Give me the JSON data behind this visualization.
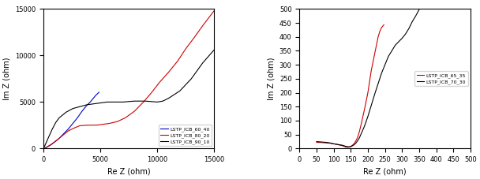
{
  "plot1": {
    "xlabel": "Re Z (ohm)",
    "ylabel": "Im Z (ohm)",
    "xlim": [
      0,
      15000
    ],
    "ylim": [
      0,
      15000
    ],
    "xticks": [
      0,
      5000,
      10000,
      15000
    ],
    "yticks": [
      0,
      5000,
      10000,
      15000
    ],
    "legend_loc": "lower right",
    "series": [
      {
        "label": "LSTP_ICB_60_40",
        "color": "#0000cc",
        "x": [
          0,
          200,
          400,
          700,
          1000,
          1400,
          1800,
          2200,
          2600,
          3000,
          3400,
          3800,
          4200,
          4600,
          4900
        ],
        "y": [
          0,
          80,
          200,
          420,
          700,
          1100,
          1600,
          2100,
          2700,
          3300,
          4000,
          4600,
          5100,
          5700,
          6050
        ]
      },
      {
        "label": "LSTP_ICB_80_20",
        "color": "#cc0000",
        "x": [
          0,
          300,
          700,
          1200,
          1700,
          2200,
          2700,
          3200,
          3700,
          4200,
          4700,
          5200,
          5800,
          6500,
          7200,
          8000,
          8800,
          9500,
          10200,
          11000,
          11800,
          12500,
          13300,
          14000,
          15000
        ],
        "y": [
          0,
          150,
          450,
          900,
          1400,
          1900,
          2200,
          2450,
          2500,
          2520,
          2520,
          2600,
          2700,
          2900,
          3300,
          4000,
          5000,
          6000,
          7100,
          8200,
          9400,
          10700,
          12000,
          13200,
          14800
        ]
      },
      {
        "label": "LSTP_ICB_90_10",
        "color": "#000000",
        "x": [
          0,
          100,
          250,
          500,
          800,
          1100,
          1400,
          1700,
          2000,
          2300,
          2600,
          2900,
          3200,
          3500,
          3800,
          4100,
          4400,
          4700,
          5000,
          5300,
          5600,
          6000,
          6500,
          7000,
          7500,
          8000,
          8500,
          9000,
          9500,
          10000,
          10500,
          11000,
          12000,
          13000,
          14000,
          15000
        ],
        "y": [
          0,
          200,
          600,
          1300,
          2100,
          2800,
          3300,
          3600,
          3900,
          4100,
          4300,
          4400,
          4500,
          4600,
          4700,
          4750,
          4800,
          4850,
          4900,
          4950,
          5000,
          5000,
          5000,
          5000,
          5050,
          5100,
          5100,
          5100,
          5050,
          5000,
          5100,
          5400,
          6200,
          7500,
          9200,
          10600
        ]
      }
    ]
  },
  "plot2": {
    "xlabel": "Re Z (ohm)",
    "ylabel": "Im Z (ohm)",
    "xlim": [
      0,
      500
    ],
    "ylim": [
      0,
      500
    ],
    "xticks": [
      0,
      50,
      100,
      150,
      200,
      250,
      300,
      350,
      400,
      450,
      500
    ],
    "yticks": [
      0,
      50,
      100,
      150,
      200,
      250,
      300,
      350,
      400,
      450,
      500
    ],
    "legend_loc": "center right",
    "series": [
      {
        "label": "LSTP_ICB_65_35",
        "color": "#cc0000",
        "x": [
          50,
          60,
          70,
          80,
          90,
          100,
          110,
          115,
          120,
          123,
          126,
          128,
          130,
          132,
          134,
          136,
          138,
          140,
          143,
          146,
          150,
          155,
          160,
          165,
          170,
          175,
          180,
          190,
          200,
          210,
          220,
          230,
          235,
          240,
          243,
          245,
          247
        ],
        "y": [
          22,
          22,
          21,
          20,
          19,
          17,
          15,
          13,
          12,
          11,
          10,
          9,
          8,
          7,
          6,
          5,
          5,
          5,
          5,
          6,
          8,
          12,
          18,
          28,
          40,
          60,
          85,
          140,
          200,
          280,
          340,
          400,
          420,
          433,
          438,
          441,
          443
        ]
      },
      {
        "label": "LSTP_ICB_70_30",
        "color": "#000000",
        "x": [
          50,
          60,
          70,
          80,
          90,
          100,
          110,
          115,
          120,
          125,
          128,
          130,
          133,
          136,
          139,
          142,
          145,
          150,
          155,
          160,
          165,
          170,
          175,
          180,
          190,
          200,
          210,
          220,
          240,
          260,
          280,
          300,
          310,
          320,
          330,
          340,
          350
        ],
        "y": [
          25,
          24,
          23,
          22,
          20,
          17,
          15,
          14,
          13,
          12,
          11,
          10,
          9,
          8,
          7,
          7,
          6,
          7,
          10,
          14,
          20,
          28,
          38,
          52,
          80,
          115,
          155,
          195,
          270,
          330,
          370,
          395,
          410,
          430,
          455,
          475,
          498
        ]
      }
    ]
  }
}
